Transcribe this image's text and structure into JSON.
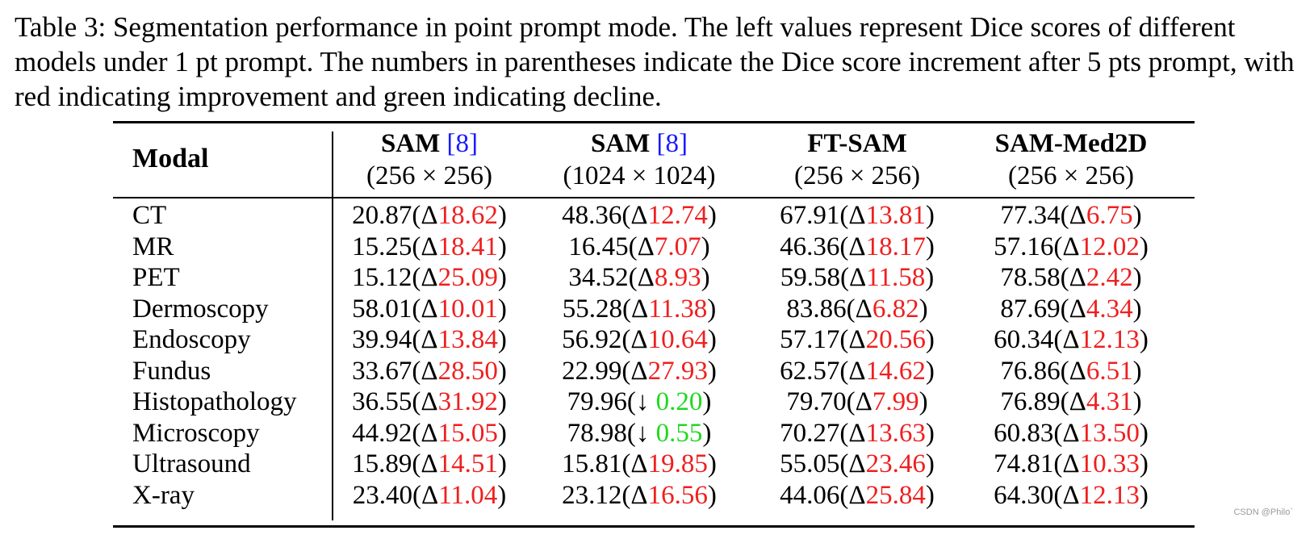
{
  "caption": "Table 3: Segmentation performance in point prompt mode. The left values represent Dice scores of different models under 1 pt prompt. The numbers in parentheses indicate the Dice score increment after 5 pts prompt, with red indicating improvement and green indicating decline.",
  "table": {
    "modal_header": "Modal",
    "columns": [
      {
        "name": "SAM",
        "cite": "[8]",
        "res": "(256 × 256)"
      },
      {
        "name": "SAM",
        "cite": "[8]",
        "res": "(1024 × 1024)"
      },
      {
        "name": "FT-SAM",
        "cite": "",
        "res": "(256 × 256)"
      },
      {
        "name": "SAM-Med2D",
        "cite": "",
        "res": "(256 × 256)"
      }
    ],
    "rows": [
      {
        "modal": "CT",
        "cells": [
          {
            "base": "20.87",
            "sym": "Δ",
            "delta": "18.62",
            "dir": "up"
          },
          {
            "base": "48.36",
            "sym": "Δ",
            "delta": "12.74",
            "dir": "up"
          },
          {
            "base": "67.91",
            "sym": "Δ",
            "delta": "13.81",
            "dir": "up"
          },
          {
            "base": "77.34",
            "sym": "Δ",
            "delta": "6.75",
            "dir": "up"
          }
        ]
      },
      {
        "modal": "MR",
        "cells": [
          {
            "base": "15.25",
            "sym": "Δ",
            "delta": "18.41",
            "dir": "up"
          },
          {
            "base": "16.45",
            "sym": "Δ",
            "delta": "7.07",
            "dir": "up"
          },
          {
            "base": "46.36",
            "sym": "Δ",
            "delta": "18.17",
            "dir": "up"
          },
          {
            "base": "57.16",
            "sym": "Δ",
            "delta": "12.02",
            "dir": "up"
          }
        ]
      },
      {
        "modal": "PET",
        "cells": [
          {
            "base": "15.12",
            "sym": "Δ",
            "delta": "25.09",
            "dir": "up"
          },
          {
            "base": "34.52",
            "sym": "Δ",
            "delta": "8.93",
            "dir": "up"
          },
          {
            "base": "59.58",
            "sym": "Δ",
            "delta": "11.58",
            "dir": "up"
          },
          {
            "base": "78.58",
            "sym": "Δ",
            "delta": "2.42",
            "dir": "up"
          }
        ]
      },
      {
        "modal": "Dermoscopy",
        "cells": [
          {
            "base": "58.01",
            "sym": "Δ",
            "delta": "10.01",
            "dir": "up"
          },
          {
            "base": "55.28",
            "sym": "Δ",
            "delta": "11.38",
            "dir": "up"
          },
          {
            "base": "83.86",
            "sym": "Δ",
            "delta": "6.82",
            "dir": "up"
          },
          {
            "base": "87.69",
            "sym": "Δ",
            "delta": "4.34",
            "dir": "up"
          }
        ]
      },
      {
        "modal": "Endoscopy",
        "cells": [
          {
            "base": "39.94",
            "sym": "Δ",
            "delta": "13.84",
            "dir": "up"
          },
          {
            "base": "56.92",
            "sym": "Δ",
            "delta": "10.64",
            "dir": "up"
          },
          {
            "base": "57.17",
            "sym": "Δ",
            "delta": "20.56",
            "dir": "up"
          },
          {
            "base": "60.34",
            "sym": "Δ",
            "delta": "12.13",
            "dir": "up"
          }
        ]
      },
      {
        "modal": "Fundus",
        "cells": [
          {
            "base": "33.67",
            "sym": "Δ",
            "delta": "28.50",
            "dir": "up"
          },
          {
            "base": "22.99",
            "sym": "Δ",
            "delta": "27.93",
            "dir": "up"
          },
          {
            "base": "62.57",
            "sym": "Δ",
            "delta": "14.62",
            "dir": "up"
          },
          {
            "base": "76.86",
            "sym": "Δ",
            "delta": "6.51",
            "dir": "up"
          }
        ]
      },
      {
        "modal": "Histopathology",
        "cells": [
          {
            "base": "36.55",
            "sym": "Δ",
            "delta": "31.92",
            "dir": "up"
          },
          {
            "base": "79.96",
            "sym": "↓ ",
            "delta": "0.20",
            "dir": "down"
          },
          {
            "base": "79.70",
            "sym": "Δ",
            "delta": "7.99",
            "dir": "up"
          },
          {
            "base": "76.89",
            "sym": "Δ",
            "delta": "4.31",
            "dir": "up"
          }
        ]
      },
      {
        "modal": "Microscopy",
        "cells": [
          {
            "base": "44.92",
            "sym": "Δ",
            "delta": "15.05",
            "dir": "up"
          },
          {
            "base": "78.98",
            "sym": "↓ ",
            "delta": "0.55",
            "dir": "down"
          },
          {
            "base": "70.27",
            "sym": "Δ",
            "delta": "13.63",
            "dir": "up"
          },
          {
            "base": "60.83",
            "sym": "Δ",
            "delta": "13.50",
            "dir": "up"
          }
        ]
      },
      {
        "modal": "Ultrasound",
        "cells": [
          {
            "base": "15.89",
            "sym": "Δ",
            "delta": "14.51",
            "dir": "up"
          },
          {
            "base": "15.81",
            "sym": "Δ",
            "delta": "19.85",
            "dir": "up"
          },
          {
            "base": "55.05",
            "sym": "Δ",
            "delta": "23.46",
            "dir": "up"
          },
          {
            "base": "74.81",
            "sym": "Δ",
            "delta": "10.33",
            "dir": "up"
          }
        ]
      },
      {
        "modal": "X-ray",
        "cells": [
          {
            "base": "23.40",
            "sym": "Δ",
            "delta": "11.04",
            "dir": "up"
          },
          {
            "base": "23.12",
            "sym": "Δ",
            "delta": "16.56",
            "dir": "up"
          },
          {
            "base": "44.06",
            "sym": "Δ",
            "delta": "25.84",
            "dir": "up"
          },
          {
            "base": "64.30",
            "sym": "Δ",
            "delta": "12.13",
            "dir": "up"
          }
        ]
      }
    ]
  },
  "colors": {
    "improvement": "#ef1f1f",
    "decline": "#1fd81f",
    "citation": "#1a1aff"
  },
  "watermark": "CSDN @Philo`"
}
